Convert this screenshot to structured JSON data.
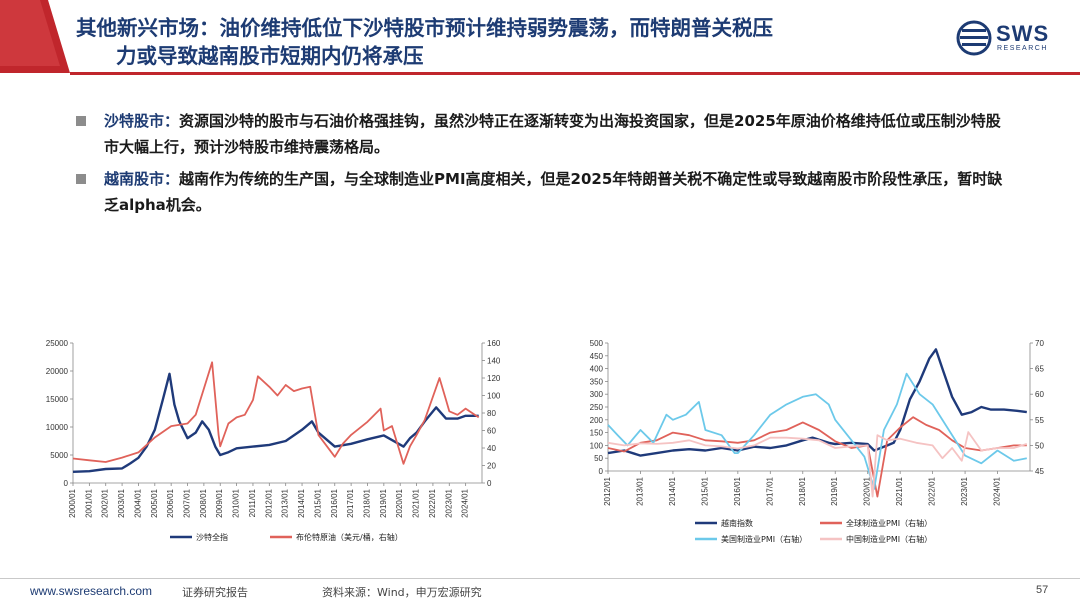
{
  "header": {
    "title_line1": "其他新兴市场：油价维持低位下沙特股市预计维持弱势震荡，而特朗普关税压",
    "title_line2": "力或导致越南股市短期内仍将承压",
    "logo_text": "SWS",
    "logo_sub": "RESEARCH",
    "accent_red": "#c0262c",
    "brand_blue": "#1d3b73"
  },
  "bullets": [
    {
      "label": "沙特股市：",
      "text": "资源国沙特的股市与石油价格强挂钩，虽然沙特正在逐渐转变为出海投资国家，但是2025年原油价格维持低位或压制沙特股市大幅上行，预计沙特股市维持震荡格局。"
    },
    {
      "label": "越南股市：",
      "text": "越南作为传统的生产国，与全球制造业PMI高度相关，但是2025年特朗普关税不确定性或导致越南股市阶段性承压，暂时缺乏alpha机会。"
    }
  ],
  "chart_data": [
    {
      "type": "line",
      "title": "",
      "x": [
        "2000/01",
        "2001/01",
        "2002/01",
        "2003/01",
        "2004/01",
        "2005/01",
        "2006/01",
        "2007/01",
        "2008/01",
        "2009/01",
        "2010/01",
        "2011/01",
        "2012/01",
        "2013/01",
        "2014/01",
        "2015/01",
        "2016/01",
        "2017/01",
        "2018/01",
        "2019/01",
        "2020/01",
        "2021/01",
        "2022/01",
        "2023/01",
        "2024/01"
      ],
      "x_range": [
        2000.0,
        2025.0
      ],
      "ylim_left": [
        0,
        25000
      ],
      "yticks_left": [
        "0",
        "5000",
        "10000",
        "15000",
        "20000",
        "25000"
      ],
      "ylim_right": [
        0,
        160
      ],
      "yticks_right": [
        "0",
        "20",
        "40",
        "60",
        "80",
        "100",
        "120",
        "140",
        "160"
      ],
      "grid": false,
      "legend_position": "bottom",
      "series": [
        {
          "name": "沙特全指",
          "axis": "left",
          "color": "#1f3a7a",
          "points": [
            [
              2000.0,
              2000
            ],
            [
              2001.0,
              2100
            ],
            [
              2002.0,
              2500
            ],
            [
              2003.0,
              2600
            ],
            [
              2003.5,
              3500
            ],
            [
              2004.0,
              4500
            ],
            [
              2004.5,
              6500
            ],
            [
              2005.0,
              9500
            ],
            [
              2005.5,
              15000
            ],
            [
              2005.9,
              19500
            ],
            [
              2006.2,
              14000
            ],
            [
              2006.5,
              11000
            ],
            [
              2007.0,
              8000
            ],
            [
              2007.5,
              9000
            ],
            [
              2007.9,
              11000
            ],
            [
              2008.3,
              9500
            ],
            [
              2008.7,
              6500
            ],
            [
              2009.0,
              5000
            ],
            [
              2009.5,
              5500
            ],
            [
              2010.0,
              6200
            ],
            [
              2011.0,
              6500
            ],
            [
              2012.0,
              6800
            ],
            [
              2013.0,
              7500
            ],
            [
              2014.0,
              9500
            ],
            [
              2014.6,
              11000
            ],
            [
              2015.0,
              9000
            ],
            [
              2016.0,
              6500
            ],
            [
              2017.0,
              7000
            ],
            [
              2018.0,
              7800
            ],
            [
              2019.0,
              8500
            ],
            [
              2020.2,
              6500
            ],
            [
              2020.6,
              8000
            ],
            [
              2021.0,
              9000
            ],
            [
              2021.5,
              11000
            ],
            [
              2022.2,
              13500
            ],
            [
              2022.8,
              11500
            ],
            [
              2023.5,
              11500
            ],
            [
              2024.0,
              12000
            ],
            [
              2024.8,
              12000
            ]
          ]
        },
        {
          "name": "布伦特原油（美元/桶，右轴）",
          "axis": "right",
          "color": "#e0625a",
          "points": [
            [
              2000.0,
              28
            ],
            [
              2001.0,
              26
            ],
            [
              2002.0,
              24
            ],
            [
              2003.0,
              29
            ],
            [
              2004.0,
              35
            ],
            [
              2005.0,
              52
            ],
            [
              2006.0,
              65
            ],
            [
              2007.0,
              68
            ],
            [
              2007.5,
              78
            ],
            [
              2008.2,
              120
            ],
            [
              2008.5,
              138
            ],
            [
              2008.9,
              55
            ],
            [
              2009.0,
              42
            ],
            [
              2009.5,
              68
            ],
            [
              2010.0,
              75
            ],
            [
              2010.5,
              78
            ],
            [
              2011.0,
              95
            ],
            [
              2011.3,
              122
            ],
            [
              2012.0,
              110
            ],
            [
              2012.5,
              100
            ],
            [
              2013.0,
              112
            ],
            [
              2013.5,
              105
            ],
            [
              2014.0,
              108
            ],
            [
              2014.5,
              110
            ],
            [
              2015.0,
              55
            ],
            [
              2016.0,
              30
            ],
            [
              2016.5,
              45
            ],
            [
              2017.0,
              55
            ],
            [
              2018.0,
              70
            ],
            [
              2018.8,
              85
            ],
            [
              2019.0,
              60
            ],
            [
              2019.5,
              65
            ],
            [
              2020.2,
              22
            ],
            [
              2020.6,
              42
            ],
            [
              2021.0,
              55
            ],
            [
              2021.5,
              72
            ],
            [
              2022.4,
              120
            ],
            [
              2022.8,
              95
            ],
            [
              2023.0,
              82
            ],
            [
              2023.5,
              78
            ],
            [
              2024.0,
              85
            ],
            [
              2024.8,
              75
            ]
          ]
        }
      ]
    },
    {
      "type": "line",
      "title": "",
      "x": [
        "2012/01",
        "2013/01",
        "2014/01",
        "2015/01",
        "2016/01",
        "2017/01",
        "2018/01",
        "2019/01",
        "2020/01",
        "2021/01",
        "2022/01",
        "2023/01",
        "2024/01"
      ],
      "x_range": [
        2012.0,
        2025.0
      ],
      "ylim_left": [
        0,
        500
      ],
      "yticks_left": [
        "0",
        "50",
        "100",
        "150",
        "200",
        "250",
        "300",
        "350",
        "400",
        "450",
        "500"
      ],
      "ylim_right": [
        45,
        70
      ],
      "yticks_right": [
        "45",
        "50",
        "55",
        "60",
        "65",
        "70"
      ],
      "grid": false,
      "legend_position": "bottom",
      "series": [
        {
          "name": "越南指数",
          "axis": "left",
          "color": "#1f3a7a",
          "points": [
            [
              2012.0,
              70
            ],
            [
              2012.5,
              80
            ],
            [
              2013.0,
              60
            ],
            [
              2013.5,
              70
            ],
            [
              2014.0,
              80
            ],
            [
              2014.5,
              85
            ],
            [
              2015.0,
              80
            ],
            [
              2015.5,
              90
            ],
            [
              2016.0,
              80
            ],
            [
              2016.5,
              95
            ],
            [
              2017.0,
              90
            ],
            [
              2017.5,
              100
            ],
            [
              2018.0,
              120
            ],
            [
              2018.3,
              130
            ],
            [
              2018.8,
              110
            ],
            [
              2019.0,
              105
            ],
            [
              2019.5,
              110
            ],
            [
              2020.0,
              105
            ],
            [
              2020.2,
              80
            ],
            [
              2020.5,
              95
            ],
            [
              2020.8,
              110
            ],
            [
              2021.0,
              160
            ],
            [
              2021.3,
              280
            ],
            [
              2021.6,
              350
            ],
            [
              2021.9,
              440
            ],
            [
              2022.1,
              475
            ],
            [
              2022.3,
              400
            ],
            [
              2022.6,
              290
            ],
            [
              2022.9,
              220
            ],
            [
              2023.2,
              230
            ],
            [
              2023.5,
              250
            ],
            [
              2023.8,
              240
            ],
            [
              2024.2,
              240
            ],
            [
              2024.6,
              235
            ],
            [
              2024.9,
              230
            ]
          ]
        },
        {
          "name": "全球制造业PMI（右轴）",
          "axis": "right",
          "color": "#e0625a",
          "points": [
            [
              2012.0,
              49.5
            ],
            [
              2012.5,
              48.8
            ],
            [
              2013.0,
              50.5
            ],
            [
              2013.5,
              51
            ],
            [
              2014.0,
              52.5
            ],
            [
              2014.5,
              52
            ],
            [
              2015.0,
              51
            ],
            [
              2015.5,
              50.8
            ],
            [
              2016.0,
              50.5
            ],
            [
              2016.5,
              51
            ],
            [
              2017.0,
              52.5
            ],
            [
              2017.5,
              53
            ],
            [
              2018.0,
              54.5
            ],
            [
              2018.5,
              53
            ],
            [
              2019.0,
              50.8
            ],
            [
              2019.5,
              49.5
            ],
            [
              2020.0,
              50
            ],
            [
              2020.3,
              39.5
            ],
            [
              2020.6,
              51
            ],
            [
              2021.0,
              53.5
            ],
            [
              2021.4,
              55.5
            ],
            [
              2021.8,
              54
            ],
            [
              2022.2,
              53
            ],
            [
              2022.6,
              51
            ],
            [
              2023.0,
              49.5
            ],
            [
              2023.5,
              49
            ],
            [
              2024.0,
              49.5
            ],
            [
              2024.5,
              50
            ],
            [
              2024.9,
              50
            ]
          ]
        },
        {
          "name": "美国制造业PMI（右轴）",
          "axis": "right",
          "color": "#6cc9ea",
          "points": [
            [
              2012.0,
              54
            ],
            [
              2012.3,
              52
            ],
            [
              2012.6,
              50
            ],
            [
              2013.0,
              53
            ],
            [
              2013.4,
              50.5
            ],
            [
              2013.8,
              56
            ],
            [
              2014.0,
              55
            ],
            [
              2014.4,
              56
            ],
            [
              2014.8,
              58.5
            ],
            [
              2015.0,
              53
            ],
            [
              2015.5,
              52
            ],
            [
              2015.9,
              48.5
            ],
            [
              2016.0,
              48.5
            ],
            [
              2016.5,
              52
            ],
            [
              2017.0,
              56
            ],
            [
              2017.5,
              58
            ],
            [
              2018.0,
              59.5
            ],
            [
              2018.4,
              60
            ],
            [
              2018.8,
              58
            ],
            [
              2019.0,
              55
            ],
            [
              2019.5,
              51
            ],
            [
              2019.9,
              47.8
            ],
            [
              2020.2,
              41.5
            ],
            [
              2020.5,
              53
            ],
            [
              2020.9,
              58
            ],
            [
              2021.2,
              64
            ],
            [
              2021.6,
              60
            ],
            [
              2022.0,
              58
            ],
            [
              2022.4,
              54
            ],
            [
              2022.8,
              50
            ],
            [
              2023.0,
              48
            ],
            [
              2023.5,
              46.5
            ],
            [
              2024.0,
              49
            ],
            [
              2024.5,
              47
            ],
            [
              2024.9,
              47.5
            ]
          ]
        },
        {
          "name": "中国制造业PMI（右轴）",
          "axis": "right",
          "color": "#f5c3c3",
          "points": [
            [
              2012.0,
              50.5
            ],
            [
              2012.5,
              50
            ],
            [
              2013.0,
              50.4
            ],
            [
              2013.5,
              50.3
            ],
            [
              2014.0,
              50.5
            ],
            [
              2014.5,
              51
            ],
            [
              2015.0,
              50
            ],
            [
              2015.5,
              49.8
            ],
            [
              2016.0,
              49.4
            ],
            [
              2016.5,
              50
            ],
            [
              2017.0,
              51.5
            ],
            [
              2017.5,
              51.5
            ],
            [
              2018.0,
              51.3
            ],
            [
              2018.5,
              51
            ],
            [
              2019.0,
              49.5
            ],
            [
              2019.5,
              49.8
            ],
            [
              2020.0,
              50
            ],
            [
              2020.15,
              35.7
            ],
            [
              2020.3,
              52
            ],
            [
              2020.6,
              51
            ],
            [
              2021.0,
              51.3
            ],
            [
              2021.5,
              50.5
            ],
            [
              2022.0,
              50
            ],
            [
              2022.3,
              47.5
            ],
            [
              2022.6,
              49.5
            ],
            [
              2022.9,
              47
            ],
            [
              2023.1,
              52.6
            ],
            [
              2023.5,
              49
            ],
            [
              2024.0,
              49.5
            ],
            [
              2024.5,
              49.5
            ],
            [
              2024.9,
              50.3
            ]
          ]
        }
      ]
    }
  ],
  "footer": {
    "url": "www.swsresearch.com",
    "report_type": "证券研究报告",
    "source": "资料来源：Wind，申万宏源研究",
    "page": "57"
  }
}
